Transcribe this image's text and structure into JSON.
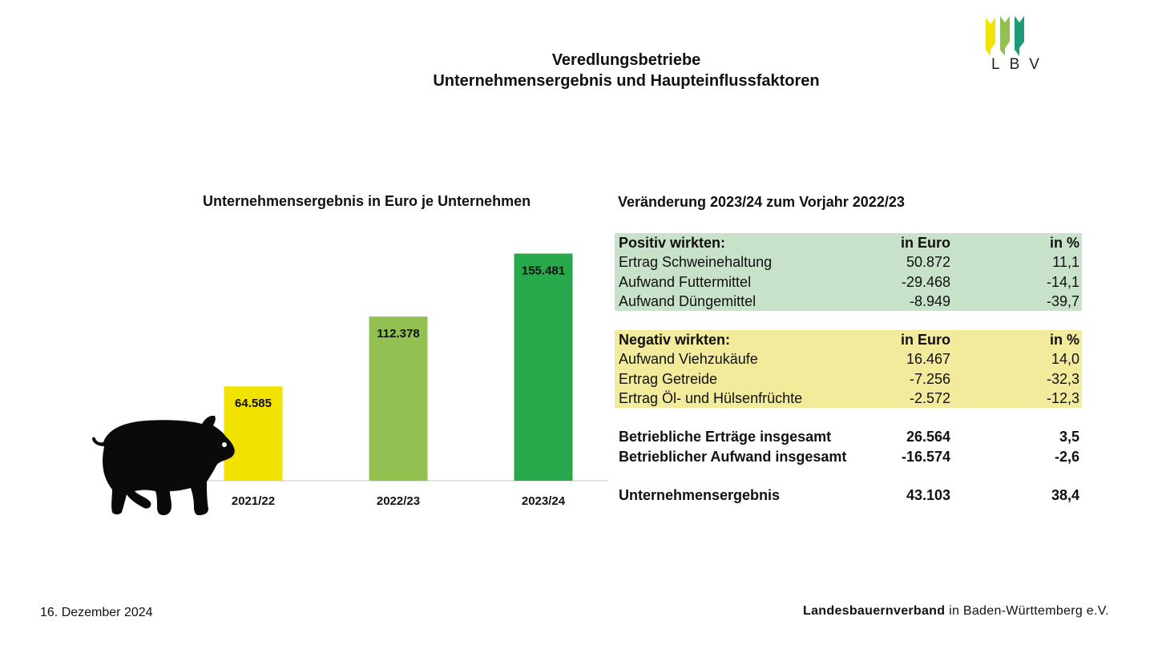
{
  "header": {
    "title_line1": "Veredlungsbetriebe",
    "title_line2": "Unternehmensergebnis und Haupteinflussfaktoren",
    "logo_text": "LBV"
  },
  "chart_title": "Unternehmensergebnis in Euro je Unternehmen",
  "chart_data": {
    "type": "bar",
    "categories": [
      "2021/22",
      "2022/23",
      "2023/24"
    ],
    "values": [
      64585,
      112378,
      155481
    ],
    "labels": [
      "64.585",
      "112.378",
      "155.481"
    ],
    "colors": [
      "#f2e200",
      "#92c152",
      "#27a84a"
    ],
    "ylim": [
      0,
      170000
    ],
    "grid": false,
    "title": "Unternehmensergebnis in Euro je Unternehmen",
    "xlabel": "",
    "ylabel": ""
  },
  "table": {
    "title": "Veränderung 2023/24 zum Vorjahr 2022/23",
    "positive": {
      "header": {
        "label": "Positiv wirkten:",
        "euro": "in Euro",
        "pct": "in %"
      },
      "rows": [
        {
          "label": "Ertrag Schweinehaltung",
          "euro": "50.872",
          "pct": "11,1"
        },
        {
          "label": "Aufwand Futtermittel",
          "euro": "-29.468",
          "pct": "-14,1"
        },
        {
          "label": "Aufwand Düngemittel",
          "euro": "-8.949",
          "pct": "-39,7"
        }
      ]
    },
    "negative": {
      "header": {
        "label": "Negativ wirkten:",
        "euro": "in Euro",
        "pct": "in %"
      },
      "rows": [
        {
          "label": "Aufwand Viehzukäufe",
          "euro": "16.467",
          "pct": "14,0"
        },
        {
          "label": "Ertrag Getreide",
          "euro": "-7.256",
          "pct": "-32,3"
        },
        {
          "label": "Ertrag Öl- und Hülsenfrüchte",
          "euro": "-2.572",
          "pct": "-12,3"
        }
      ]
    },
    "totals": [
      {
        "label": "Betriebliche Erträge insgesamt",
        "euro": "26.564",
        "pct": "3,5"
      },
      {
        "label": "Betrieblicher Aufwand insgesamt",
        "euro": "-16.574",
        "pct": "-2,6"
      }
    ],
    "result": {
      "label": "Unternehmensergebnis",
      "euro": "43.103",
      "pct": "38,4"
    }
  },
  "footer": {
    "date": "16. Dezember 2024",
    "org_bold": "Landesbauernverband",
    "org_rest": " in Baden-Württemberg e.V."
  }
}
